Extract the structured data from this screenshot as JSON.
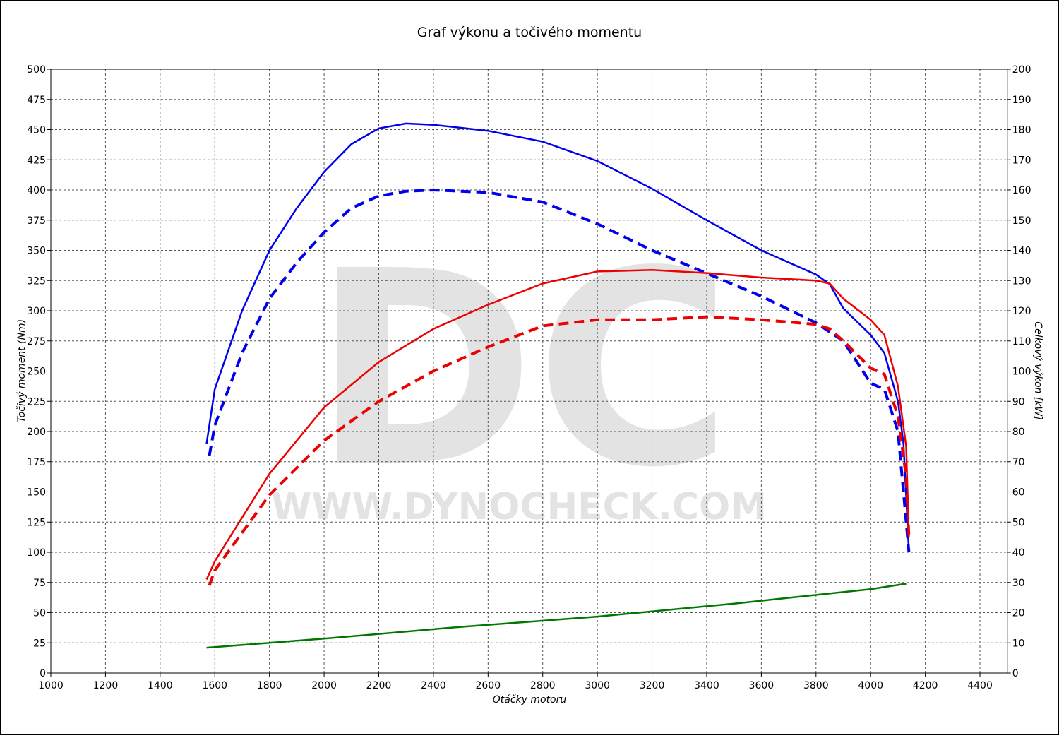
{
  "chart_data": {
    "type": "line",
    "title": "Graf výkonu a točivého momentu",
    "x_label": "Otáčky motoru",
    "y_label": "Točivý moment (Nm)",
    "y2_label": "Celkový výkon [kW]",
    "watermark": [
      "DC",
      "WWW.DYNOCHECK.COM"
    ],
    "grid": true,
    "xlim": [
      1000,
      4500
    ],
    "xticks": [
      1000,
      1200,
      1400,
      1600,
      1800,
      2000,
      2200,
      2400,
      2600,
      2800,
      3000,
      3200,
      3400,
      3600,
      3800,
      4000,
      4200,
      4400
    ],
    "ylim": [
      0,
      500
    ],
    "yticks": [
      0,
      25,
      50,
      75,
      100,
      125,
      150,
      175,
      200,
      225,
      250,
      275,
      300,
      325,
      350,
      375,
      400,
      425,
      450,
      475,
      500
    ],
    "y2lim": [
      0,
      200
    ],
    "y2ticks": [
      0,
      10,
      20,
      30,
      40,
      50,
      60,
      70,
      80,
      90,
      100,
      110,
      120,
      130,
      140,
      150,
      160,
      170,
      180,
      190,
      200
    ],
    "series": [
      {
        "color": "#0000ee",
        "dash": false,
        "axis": "y",
        "x": [
          1570,
          1600,
          1700,
          1800,
          1900,
          2000,
          2100,
          2200,
          2300,
          2400,
          2600,
          2800,
          3000,
          3200,
          3400,
          3600,
          3800,
          3850,
          3900,
          4000,
          4050,
          4100,
          4120,
          4140
        ],
        "values": [
          190,
          235,
          300,
          350,
          385,
          415,
          438,
          451,
          455,
          454,
          449,
          440,
          424,
          401,
          375,
          350,
          330,
          322,
          302,
          280,
          265,
          225,
          190,
          100
        ]
      },
      {
        "color": "#0000ee",
        "dash": true,
        "axis": "y",
        "x": [
          1580,
          1600,
          1700,
          1800,
          1900,
          2000,
          2100,
          2200,
          2300,
          2400,
          2600,
          2800,
          3000,
          3200,
          3400,
          3600,
          3800,
          3900,
          4000,
          4050,
          4100,
          4140
        ],
        "values": [
          180,
          205,
          265,
          310,
          340,
          365,
          385,
          395,
          399,
          400,
          398,
          390,
          372,
          350,
          331,
          312,
          290,
          275,
          240,
          235,
          200,
          100
        ]
      },
      {
        "color": "#ee0000",
        "dash": false,
        "axis": "y2",
        "x": [
          1570,
          1600,
          1800,
          2000,
          2200,
          2400,
          2600,
          2800,
          3000,
          3200,
          3400,
          3600,
          3800,
          3850,
          3900,
          4000,
          4050,
          4100,
          4130,
          4140
        ],
        "values": [
          31,
          37,
          66,
          88,
          103,
          114,
          122,
          129,
          133,
          133.5,
          132.5,
          131,
          130,
          129,
          124,
          117,
          112,
          95,
          75,
          45
        ]
      },
      {
        "color": "#ee0000",
        "dash": true,
        "axis": "y2",
        "x": [
          1580,
          1600,
          1800,
          2000,
          2200,
          2400,
          2600,
          2800,
          3000,
          3200,
          3400,
          3600,
          3800,
          3850,
          3900,
          4000,
          4050,
          4100,
          4130,
          4140
        ],
        "values": [
          29,
          34,
          59,
          77,
          90,
          100,
          108,
          115,
          117,
          117,
          118,
          117,
          115.5,
          114,
          110,
          101,
          99,
          85,
          65,
          45
        ]
      },
      {
        "color": "#007700",
        "dash": false,
        "axis": "y2",
        "x": [
          1570,
          2000,
          2500,
          3000,
          3500,
          4000,
          4130
        ],
        "values": [
          8.4,
          11.4,
          15.3,
          18.7,
          23,
          27.8,
          29.6
        ]
      }
    ]
  }
}
